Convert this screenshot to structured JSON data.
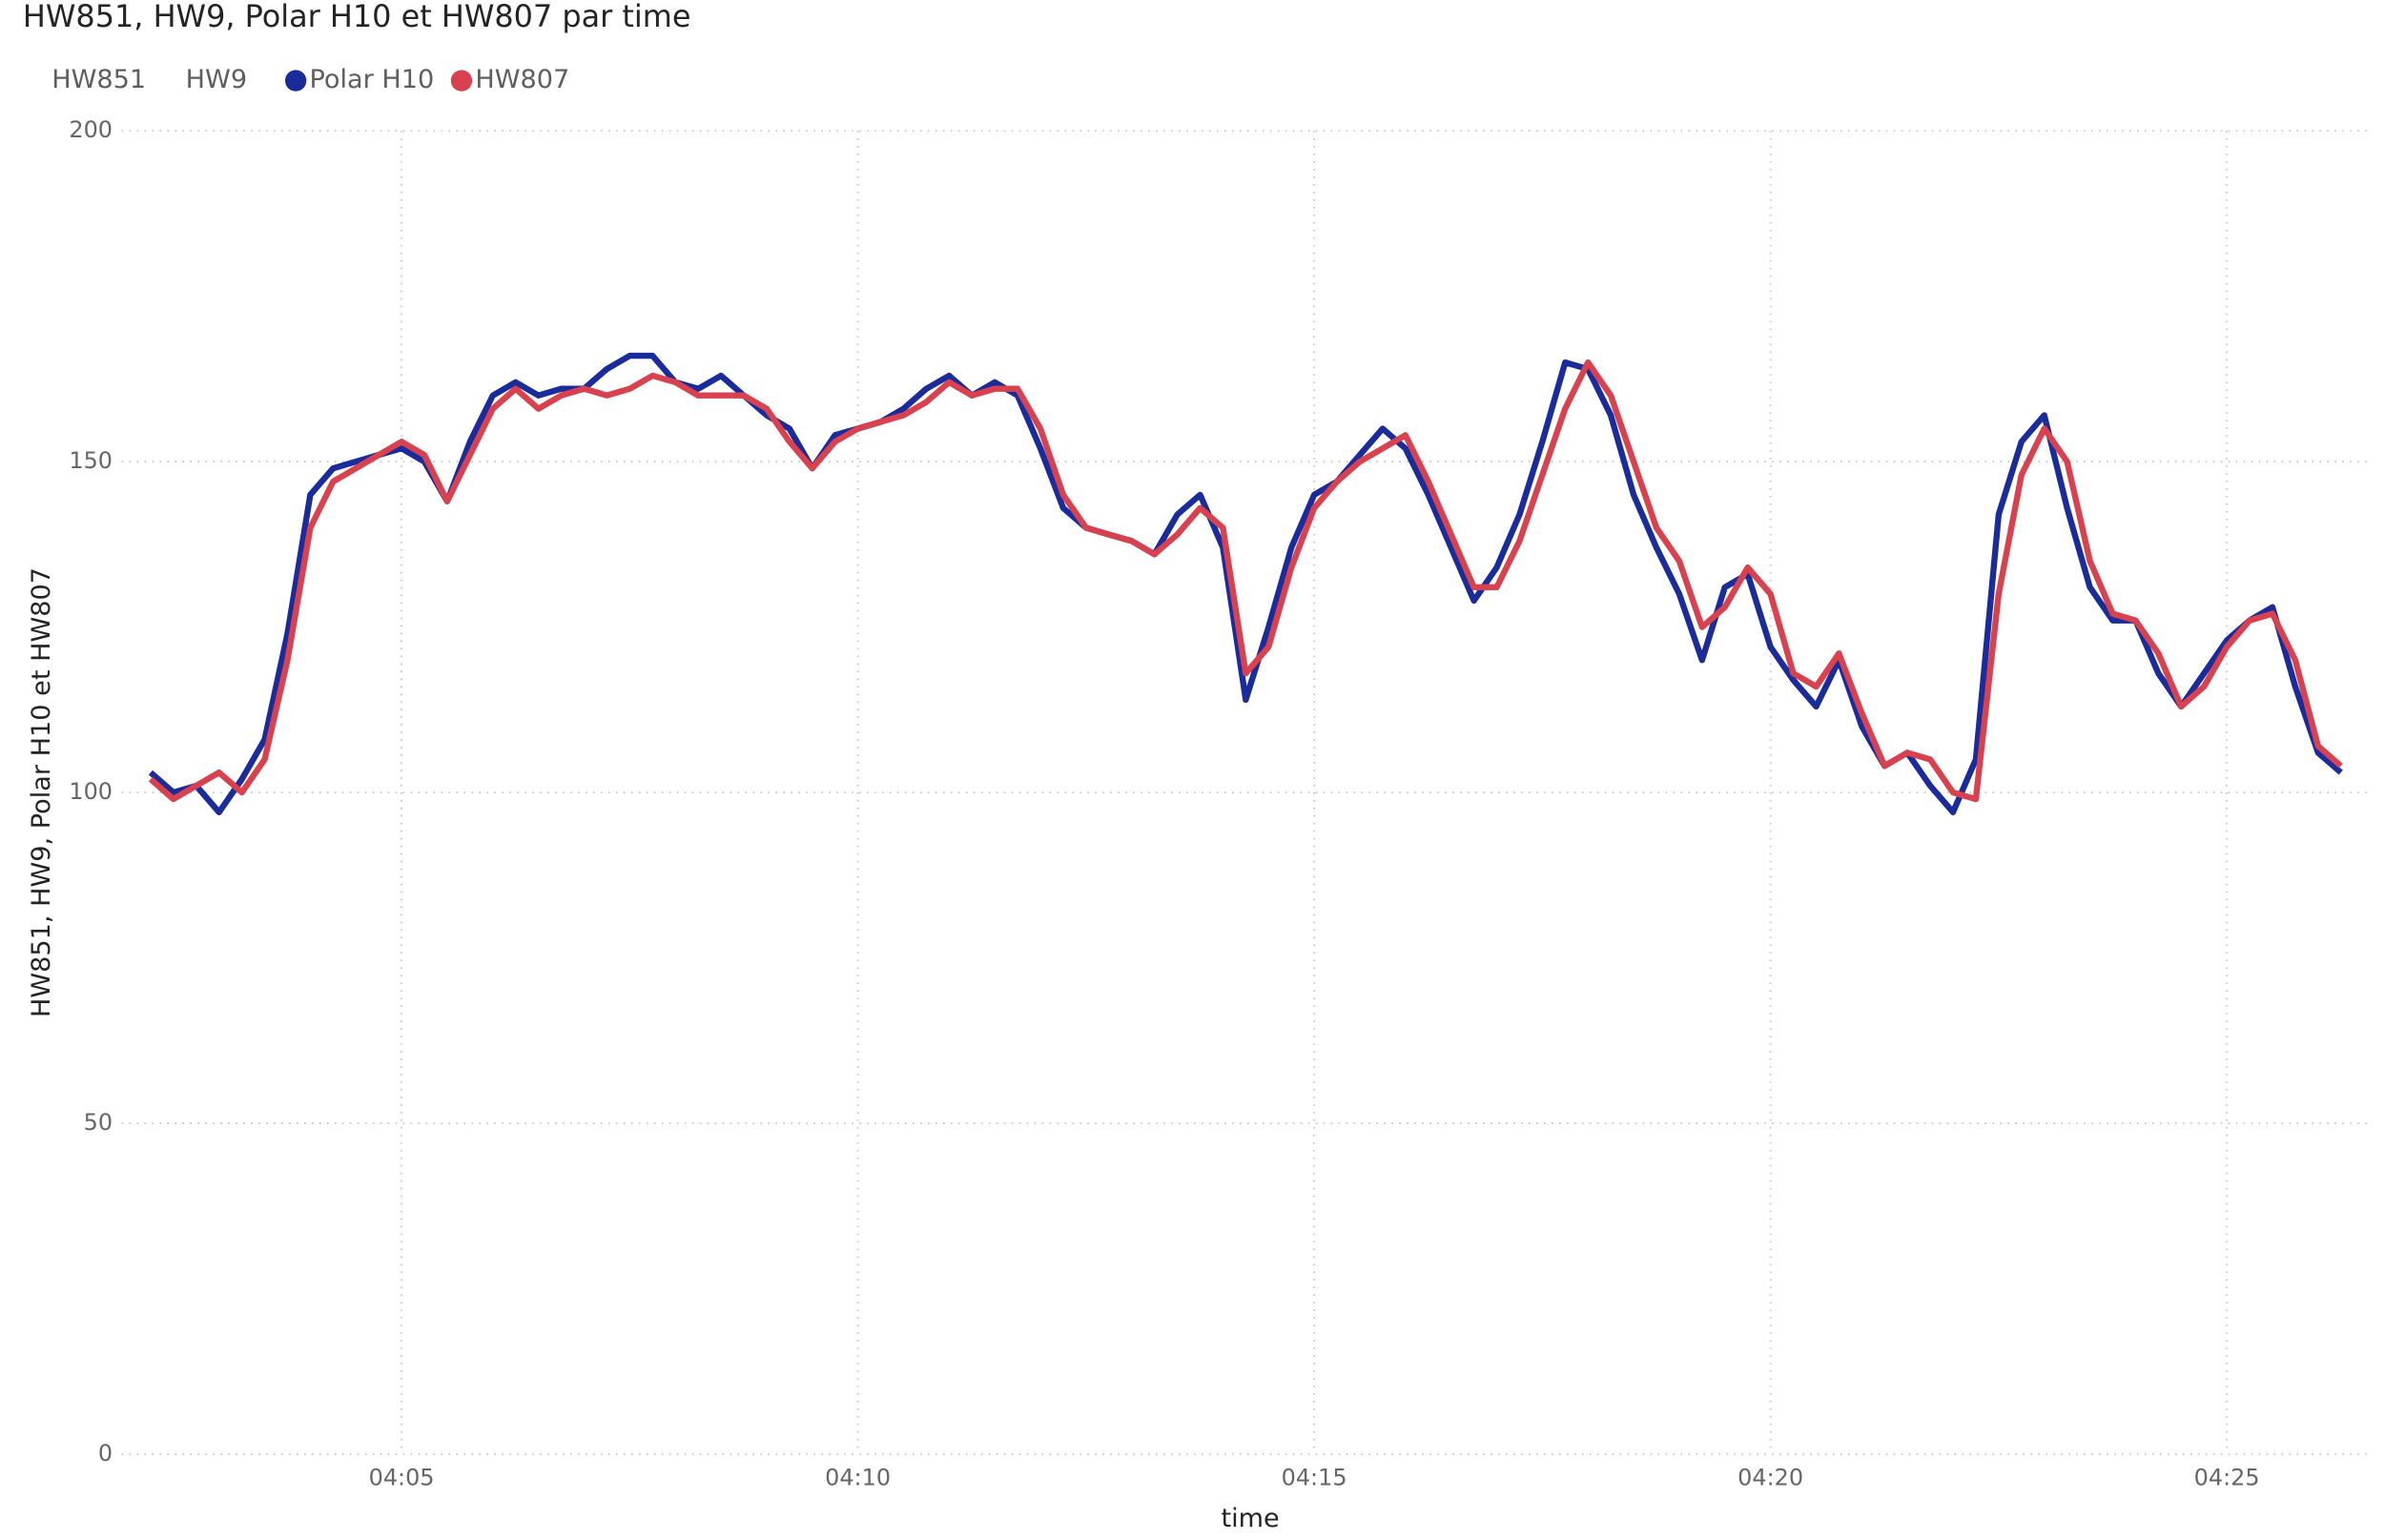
{
  "chart_data": {
    "type": "line",
    "title": "HW851, HW9, Polar H10 et HW807 par time",
    "x_label": "time",
    "y_label": "HW851, HW9, Polar H10 et HW807",
    "x": [
      242.25,
      242.5,
      242.75,
      243,
      243.25,
      243.5,
      243.75,
      244,
      244.25,
      244.5,
      244.75,
      245,
      245.25,
      245.5,
      245.75,
      246,
      246.25,
      246.5,
      246.75,
      247,
      247.25,
      247.5,
      247.75,
      248,
      248.25,
      248.5,
      248.75,
      249,
      249.25,
      249.5,
      249.75,
      250,
      250.25,
      250.5,
      250.75,
      251,
      251.25,
      251.5,
      251.75,
      252,
      252.25,
      252.5,
      252.75,
      253,
      253.25,
      253.5,
      253.75,
      254,
      254.25,
      254.5,
      254.75,
      255,
      255.25,
      255.5,
      255.75,
      256,
      256.25,
      256.5,
      256.75,
      257,
      257.25,
      257.5,
      257.75,
      258,
      258.25,
      258.5,
      258.75,
      259,
      259.25,
      259.5,
      259.75,
      260,
      260.25,
      260.5,
      260.75,
      261,
      261.25,
      261.5,
      261.75,
      262,
      262.25,
      262.5,
      262.75,
      263,
      263.25,
      263.5,
      263.75,
      264,
      264.25,
      264.5,
      264.75,
      265,
      265.25,
      265.5,
      265.75,
      266,
      266.25
    ],
    "series": [
      {
        "name": "HW851",
        "values": [
          null,
          null,
          null,
          null,
          null,
          null,
          null,
          null,
          null,
          null,
          null,
          null,
          null,
          null,
          null,
          null,
          null,
          null,
          null,
          null,
          null,
          null,
          null,
          null,
          null,
          null,
          null,
          null,
          null,
          null,
          null,
          null,
          null,
          null,
          null,
          null,
          null,
          null,
          null,
          null,
          null,
          null,
          null,
          null,
          null,
          null,
          null,
          null,
          null,
          null,
          null,
          null,
          null,
          null,
          null,
          null,
          null,
          null,
          null,
          null,
          null,
          null,
          null,
          null,
          null,
          null,
          null,
          null,
          null,
          null,
          null,
          null,
          null,
          null,
          null,
          null,
          null,
          null,
          null,
          null,
          null,
          null,
          null,
          null,
          null,
          null,
          null,
          null,
          null,
          null,
          null,
          null,
          null,
          null,
          null,
          null,
          null
        ]
      },
      {
        "name": "HW9",
        "values": [
          null,
          null,
          null,
          null,
          null,
          null,
          null,
          null,
          null,
          null,
          null,
          null,
          null,
          null,
          null,
          null,
          null,
          null,
          null,
          null,
          null,
          null,
          null,
          null,
          null,
          null,
          null,
          null,
          null,
          null,
          null,
          null,
          null,
          null,
          null,
          null,
          null,
          null,
          null,
          null,
          null,
          null,
          null,
          null,
          null,
          null,
          null,
          null,
          null,
          null,
          null,
          null,
          null,
          null,
          null,
          null,
          null,
          null,
          null,
          null,
          null,
          null,
          null,
          null,
          null,
          null,
          null,
          null,
          null,
          null,
          null,
          null,
          null,
          null,
          null,
          null,
          null,
          null,
          null,
          null,
          null,
          null,
          null,
          null,
          null,
          null,
          null,
          null,
          null,
          null,
          null,
          null,
          null,
          null,
          null,
          null,
          null
        ]
      },
      {
        "name": "Polar H10",
        "color": "#1a2b9b",
        "values": [
          103,
          100,
          101,
          97,
          102,
          108,
          124,
          145,
          149,
          150,
          151,
          152,
          150,
          144,
          153,
          160,
          162,
          160,
          161,
          161,
          164,
          166,
          166,
          162,
          161,
          163,
          160,
          157,
          155,
          149,
          154,
          155,
          156,
          158,
          161,
          163,
          160,
          162,
          160,
          152,
          143,
          140,
          139,
          138,
          136,
          142,
          145,
          137,
          114,
          125,
          137,
          145,
          147,
          151,
          155,
          152,
          145,
          137,
          129,
          134,
          142,
          153,
          165,
          164,
          157,
          145,
          137,
          130,
          120,
          131,
          133,
          122,
          117,
          113,
          120,
          110,
          104,
          106,
          101,
          97,
          105,
          142,
          153,
          157,
          143,
          131,
          126,
          126,
          118,
          113,
          118,
          123,
          126,
          128,
          116,
          106,
          103
        ]
      },
      {
        "name": "HW807",
        "color": "#d9414f",
        "values": [
          102,
          99,
          101,
          103,
          100,
          105,
          120,
          140,
          147,
          149,
          151,
          153,
          151,
          144,
          151,
          158,
          161,
          158,
          160,
          161,
          160,
          161,
          163,
          162,
          160,
          160,
          160,
          158,
          153,
          149,
          153,
          155,
          156,
          157,
          159,
          162,
          160,
          161,
          161,
          155,
          145,
          140,
          139,
          138,
          136,
          139,
          143,
          140,
          118,
          122,
          134,
          143,
          147,
          150,
          152,
          154,
          147,
          139,
          131,
          131,
          138,
          148,
          158,
          165,
          160,
          150,
          140,
          135,
          125,
          128,
          134,
          130,
          118,
          116,
          121,
          112,
          104,
          106,
          105,
          100,
          99,
          130,
          148,
          155,
          150,
          135,
          127,
          126,
          121,
          113,
          116,
          122,
          126,
          127,
          120,
          107,
          104
        ]
      }
    ],
    "xlim": [
      242.1,
      266.6
    ],
    "xticks": [
      {
        "value": 245,
        "label": "04:05"
      },
      {
        "value": 250,
        "label": "04:10"
      },
      {
        "value": 255,
        "label": "04:15"
      },
      {
        "value": 260,
        "label": "04:20"
      },
      {
        "value": 265,
        "label": "04:25"
      }
    ],
    "ylim": [
      0,
      200
    ],
    "yticks": [
      0,
      50,
      100,
      150,
      200
    ],
    "grid": true
  }
}
